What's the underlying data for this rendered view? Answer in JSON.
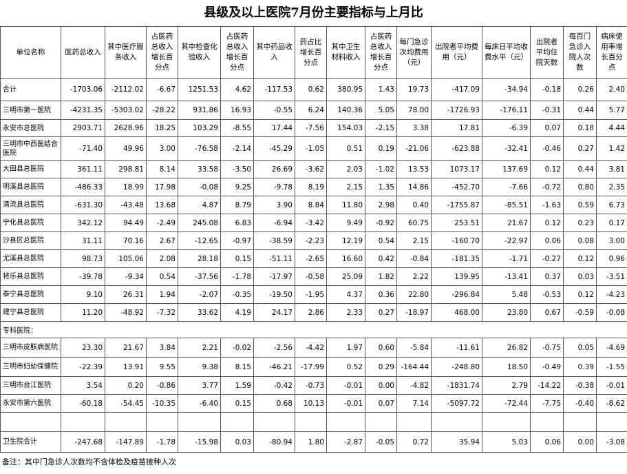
{
  "title": "县级及以上医院7月份主要指标与上月比",
  "table": {
    "header": [
      "单位名称",
      "医药总收入",
      "其中医疗服务收入",
      "占医药总收入增长百分点",
      "其中检查化验收入",
      "占医药总收入增长百分点",
      "其中药品收入",
      "药占比增长百分点",
      "其中卫生材料收入",
      "占医药总收入增长百分点",
      "每门急诊次均费用（元）",
      "出院者平均费用（元）",
      "每床日平均收费水平（元）",
      "出院者平均住院天数",
      "每百门急诊入院人次数",
      "病床使用率增长百分点"
    ],
    "rows": [
      {
        "name": "合计",
        "cells": [
          "-1703.06",
          "-2112.02",
          "-6.67",
          "1251.53",
          "4.62",
          "-117.53",
          "0.62",
          "380.95",
          "1.43",
          "19.73",
          "-417.09",
          "-34.94",
          "-0.18",
          "0.26",
          "2.40"
        ]
      },
      {
        "name": "三明市第一医院",
        "cells": [
          "-4231.35",
          "-5303.02",
          "-28.22",
          "931.86",
          "16.93",
          "-0.55",
          "6.24",
          "140.36",
          "5.05",
          "78.00",
          "-1726.93",
          "-176.11",
          "-0.31",
          "0.44",
          "5.77"
        ]
      },
      {
        "name": "永安市总医院",
        "cells": [
          "2903.71",
          "2628.96",
          "18.25",
          "103.29",
          "-8.55",
          "17.44",
          "-7.56",
          "154.03",
          "-2.15",
          "3.38",
          "17.81",
          "-6.39",
          "0.07",
          "0.18",
          "4.44"
        ]
      },
      {
        "name": "三明市中西医结合医院",
        "cells": [
          "-71.40",
          "49.96",
          "3.00",
          "-76.58",
          "-2.14",
          "-45.29",
          "-1.05",
          "0.51",
          "0.19",
          "-21.06",
          "-623.88",
          "-32.41",
          "-0.46",
          "0.27",
          "1.42"
        ]
      },
      {
        "name": "大田县总医院",
        "cells": [
          "361.11",
          "298.81",
          "8.14",
          "33.58",
          "-3.50",
          "26.69",
          "-3.62",
          "2.03",
          "-1.02",
          "13.53",
          "1073.17",
          "137.69",
          "0.12",
          "0.44",
          "3.81"
        ]
      },
      {
        "name": "明溪县总医院",
        "cells": [
          "-486.33",
          "18.99",
          "17.98",
          "-0.08",
          "9.25",
          "-9.78",
          "8.19",
          "2.15",
          "1.35",
          "14.86",
          "-452.70",
          "-7.66",
          "-0.72",
          "0.80",
          "2.35"
        ]
      },
      {
        "name": "清流县总医院",
        "cells": [
          "-631.30",
          "-43.48",
          "13.68",
          "4.87",
          "8.79",
          "3.90",
          "8.84",
          "11.80",
          "2.98",
          "0.40",
          "-1755.87",
          "-85.51",
          "-1.63",
          "0.59",
          "6.73"
        ]
      },
      {
        "name": "宁化县总医院",
        "cells": [
          "342.12",
          "94.49",
          "-2.49",
          "245.08",
          "6.83",
          "-6.94",
          "-3.42",
          "9.49",
          "-0.92",
          "60.75",
          "253.51",
          "21.67",
          "0.12",
          "0.23",
          "0.17"
        ]
      },
      {
        "name": "沙县区总医院",
        "cells": [
          "31.11",
          "70.16",
          "2.67",
          "-12.65",
          "-0.97",
          "-38.59",
          "-2.23",
          "12.19",
          "0.54",
          "2.15",
          "-160.70",
          "-22.97",
          "0.06",
          "0.08",
          "3.00"
        ]
      },
      {
        "name": "尤溪县总医院",
        "cells": [
          "98.73",
          "105.06",
          "2.08",
          "28.18",
          "0.15",
          "-51.11",
          "-2.65",
          "16.60",
          "0.42",
          "-0.84",
          "-181.35",
          "-1.71",
          "-0.27",
          "0.12",
          "0.96"
        ]
      },
      {
        "name": "将乐县总医院",
        "cells": [
          "-39.78",
          "-9.34",
          "0.54",
          "-37.56",
          "-1.78",
          "-17.97",
          "-0.58",
          "25.09",
          "1.82",
          "2.22",
          "139.95",
          "-13.41",
          "0.37",
          "0.03",
          "-3.51"
        ]
      },
      {
        "name": "泰宁县总医院",
        "cells": [
          "9.10",
          "26.31",
          "1.94",
          "-2.07",
          "-0.35",
          "-19.50",
          "-1.95",
          "4.37",
          "0.36",
          "22.80",
          "-296.84",
          "5.48",
          "-0.53",
          "0.12",
          "-4.23"
        ]
      },
      {
        "name": "建宁县总医院",
        "cells": [
          "11.20",
          "-48.92",
          "-7.32",
          "33.62",
          "4.19",
          "24.17",
          "2.86",
          "2.33",
          "0.27",
          "-18.97",
          "468.00",
          "23.80",
          "0.67",
          "-0.59",
          "-0.08"
        ]
      }
    ],
    "section_label": "专科医院：",
    "specialty_rows": [
      {
        "name": "三明市皮肤病医院",
        "cells": [
          "23.30",
          "21.67",
          "3.84",
          "2.21",
          "-0.02",
          "-2.56",
          "-4.42",
          "1.97",
          "0.60",
          "-5.84",
          "-11.61",
          "26.82",
          "-0.75",
          "0.05",
          "-4.69"
        ]
      },
      {
        "name": "三明市妇幼保健院",
        "cells": [
          "-22.39",
          "13.91",
          "9.55",
          "9.38",
          "8.15",
          "-46.21",
          "-17.99",
          "0.52",
          "0.29",
          "-164.44",
          "-248.80",
          "18.50",
          "-0.49",
          "0.39",
          "-1.55"
        ]
      },
      {
        "name": "三明市台江医院",
        "cells": [
          "3.54",
          "0.20",
          "-0.86",
          "3.77",
          "1.59",
          "-0.42",
          "-0.73",
          "-0.01",
          "0.00",
          "-4.82",
          "-1831.74",
          "2.79",
          "-14.22",
          "-0.38",
          "-0.01"
        ]
      },
      {
        "name": "永安市第六医院",
        "cells": [
          "-60.18",
          "-54.45",
          "-10.35",
          "-6.40",
          "0.15",
          "0.68",
          "10.13",
          "-0.01",
          "0.07",
          "7.14",
          "-5097.72",
          "-72.44",
          "-7.75",
          "-0.40",
          "-8.62"
        ]
      }
    ],
    "total_row": {
      "name": "卫生院合计",
      "cells": [
        "-247.68",
        "-147.89",
        "-1.78",
        "-15.98",
        "0.03",
        "-80.94",
        "1.80",
        "-2.87",
        "-0.05",
        "0.72",
        "35.94",
        "5.03",
        "0.06",
        "0.00",
        "-3.08"
      ]
    }
  },
  "note": "备注：其中门急诊人次数均不含体检及疫苗接种人次"
}
